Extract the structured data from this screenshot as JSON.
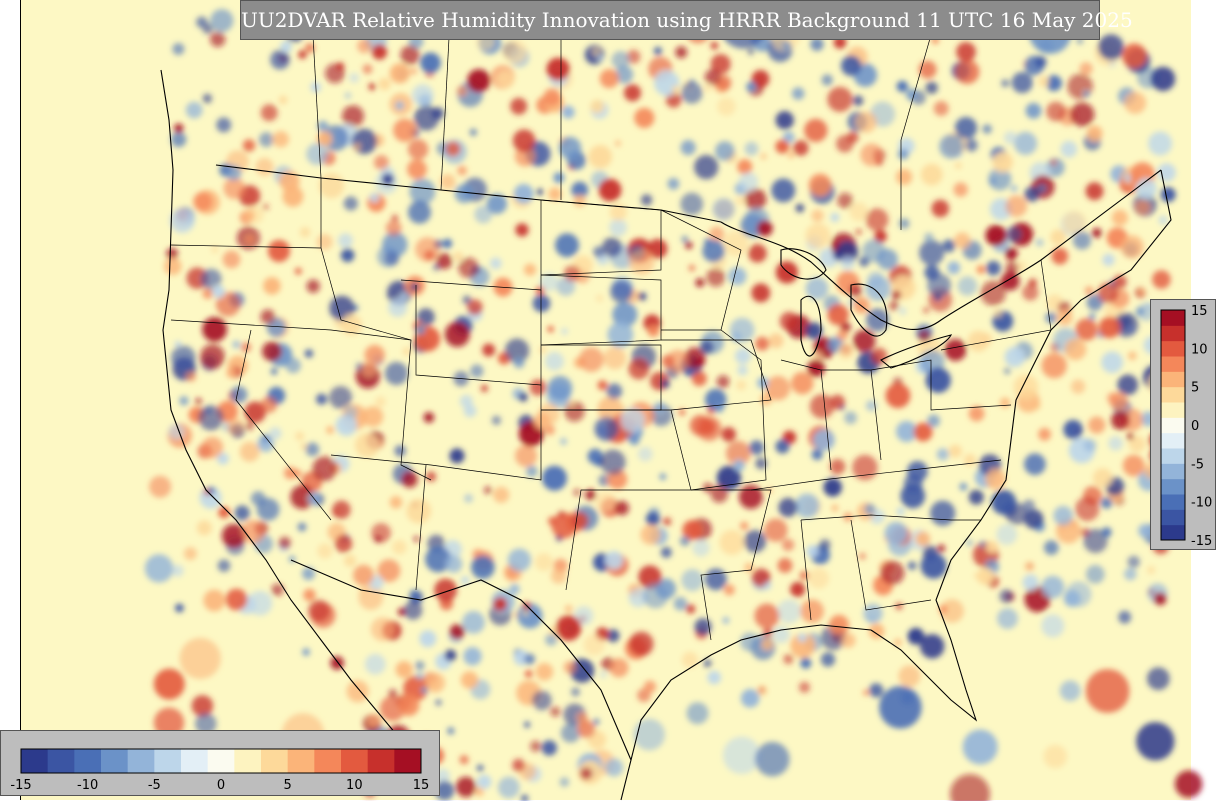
{
  "title": "UU2DVAR Relative Humidity Innovation using HRRR Background 11 UTC 16 May 2025",
  "colorbar": {
    "min": -15,
    "max": 15,
    "bottom_tick_labels": [
      "-15",
      "-10",
      "-5",
      "0",
      "5",
      "10",
      "15"
    ],
    "right_tick_labels": [
      "15",
      "10",
      "5",
      "0",
      "-5",
      "-10",
      "-15"
    ],
    "colors": [
      "#2c3a8c",
      "#3b55a3",
      "#4a6fb6",
      "#6b92c8",
      "#93b4d9",
      "#bdd6ea",
      "#e3eff6",
      "#fbfbf0",
      "#fdf3c0",
      "#fdd99a",
      "#fbb479",
      "#f4875a",
      "#e35a3f",
      "#c7302c",
      "#a50f23"
    ]
  },
  "map": {
    "background_color": "#fdf8c4",
    "region": "CONUS"
  }
}
